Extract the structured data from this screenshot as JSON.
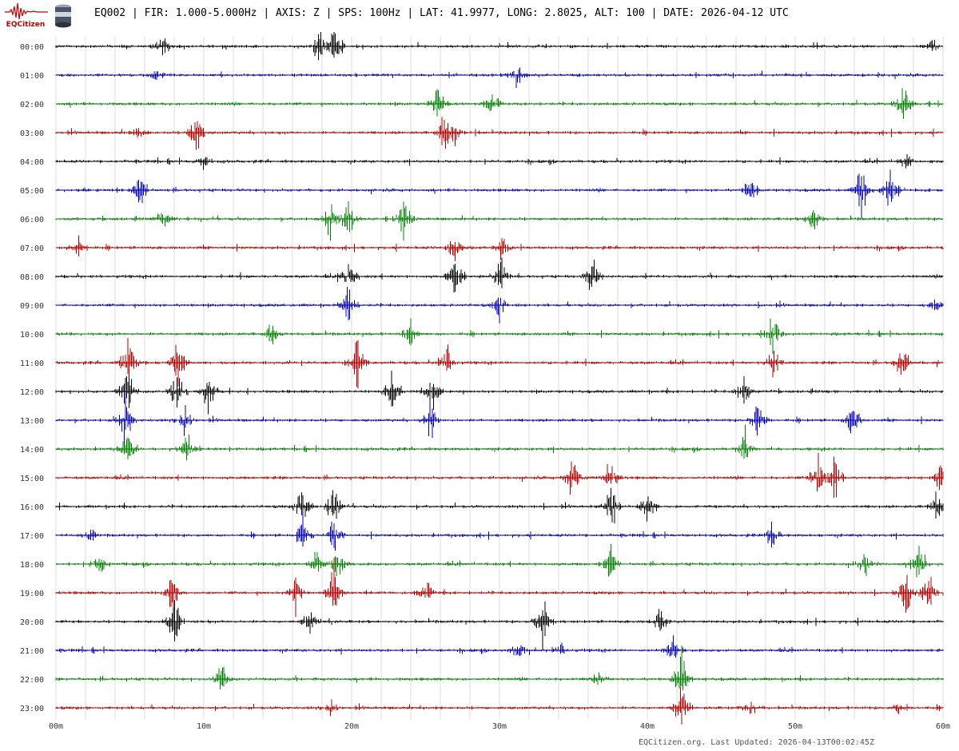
{
  "header": {
    "logo_text": "EQCitizen",
    "logo_icon": "seismogram-logo-icon",
    "sensor_icon": "sensor-can-icon",
    "title": "EQ002 | FIR: 1.000-5.000Hz | AXIS: Z | SPS: 100Hz | LAT: 41.9977, LONG: 2.8025, ALT: 100 | DATE: 2026-04-12 UTC"
  },
  "chart_data": {
    "type": "line",
    "title": "EQ002 | FIR: 1.000-5.000Hz | AXIS: Z | SPS: 100Hz | LAT: 41.9977, LONG: 2.8025, ALT: 100 | DATE: 2026-04-12 UTC",
    "xlabel": "",
    "ylabel": "",
    "x_ticks": [
      "00m",
      "10m",
      "20m",
      "30m",
      "40m",
      "50m",
      "60m"
    ],
    "x_range_minutes": [
      0,
      60
    ],
    "grid_minutes": 2,
    "grid": true,
    "color_cycle": [
      "#000000",
      "#0000b0",
      "#008000",
      "#b00000"
    ],
    "rows": [
      {
        "label": "00:00",
        "events": [
          [
            7.2,
            0.55
          ],
          [
            17.8,
            0.7
          ],
          [
            18.9,
            0.8
          ],
          [
            59.3,
            0.25
          ]
        ]
      },
      {
        "label": "01:00",
        "events": [
          [
            31.2,
            0.5
          ],
          [
            6.8,
            0.2
          ]
        ]
      },
      {
        "label": "02:00",
        "events": [
          [
            25.8,
            0.7
          ],
          [
            57.3,
            0.9
          ],
          [
            29.5,
            0.5
          ]
        ]
      },
      {
        "label": "03:00",
        "events": [
          [
            9.5,
            0.9
          ],
          [
            26.3,
            0.8
          ],
          [
            5.5,
            0.3
          ],
          [
            27,
            0.5
          ]
        ]
      },
      {
        "label": "04:00",
        "events": [
          [
            57.5,
            0.3
          ],
          [
            10,
            0.2
          ]
        ]
      },
      {
        "label": "05:00",
        "events": [
          [
            5.8,
            0.7
          ],
          [
            47,
            0.5
          ],
          [
            54.5,
            1.0
          ],
          [
            56.5,
            1.0
          ]
        ]
      },
      {
        "label": "06:00",
        "events": [
          [
            18.5,
            0.8
          ],
          [
            19.8,
            0.9
          ],
          [
            23.5,
            0.9
          ],
          [
            51.3,
            0.6
          ],
          [
            7.3,
            0.5
          ]
        ]
      },
      {
        "label": "07:00",
        "events": [
          [
            27,
            0.7
          ],
          [
            30.2,
            0.5
          ],
          [
            1.5,
            0.3
          ]
        ]
      },
      {
        "label": "08:00",
        "events": [
          [
            19.8,
            0.9
          ],
          [
            27,
            0.9
          ],
          [
            30,
            1.0
          ],
          [
            36.3,
            0.7
          ]
        ]
      },
      {
        "label": "09:00",
        "events": [
          [
            19.8,
            0.7
          ],
          [
            30,
            0.5
          ],
          [
            59.5,
            0.3
          ]
        ]
      },
      {
        "label": "10:00",
        "events": [
          [
            14.6,
            0.4
          ],
          [
            24,
            0.5
          ],
          [
            48.5,
            0.7
          ]
        ]
      },
      {
        "label": "11:00",
        "events": [
          [
            4.9,
            1.0
          ],
          [
            8.3,
            0.9
          ],
          [
            20.4,
            0.8
          ],
          [
            26.4,
            0.8
          ],
          [
            48.5,
            0.6
          ],
          [
            57.2,
            0.9
          ]
        ]
      },
      {
        "label": "12:00",
        "events": [
          [
            4.8,
            1.0
          ],
          [
            8.2,
            0.9
          ],
          [
            10.3,
            0.9
          ],
          [
            22.8,
            1.0
          ],
          [
            25.4,
            1.0
          ],
          [
            46.5,
            0.5
          ]
        ]
      },
      {
        "label": "13:00",
        "events": [
          [
            4.7,
            1.0
          ],
          [
            8.7,
            0.6
          ],
          [
            25.4,
            0.8
          ],
          [
            47.5,
            0.8
          ],
          [
            53.9,
            0.7
          ]
        ]
      },
      {
        "label": "14:00",
        "events": [
          [
            4.9,
            0.7
          ],
          [
            8.9,
            0.5
          ],
          [
            46.6,
            0.8
          ]
        ]
      },
      {
        "label": "15:00",
        "events": [
          [
            34.9,
            0.8
          ],
          [
            37.5,
            0.9
          ],
          [
            51.5,
            0.8
          ],
          [
            52.7,
            0.8
          ],
          [
            59.8,
            0.5
          ]
        ]
      },
      {
        "label": "16:00",
        "events": [
          [
            16.7,
            1.0
          ],
          [
            18.8,
            0.9
          ],
          [
            37.6,
            1.0
          ],
          [
            40.1,
            0.8
          ],
          [
            59.6,
            0.5
          ]
        ]
      },
      {
        "label": "17:00",
        "events": [
          [
            16.7,
            0.8
          ],
          [
            18.8,
            0.7
          ],
          [
            48.4,
            0.5
          ],
          [
            2.3,
            0.3
          ]
        ]
      },
      {
        "label": "18:00",
        "events": [
          [
            2.9,
            0.5
          ],
          [
            17.6,
            0.6
          ],
          [
            19.1,
            0.8
          ],
          [
            37.5,
            0.6
          ],
          [
            54.6,
            0.6
          ],
          [
            58.4,
            0.7
          ]
        ]
      },
      {
        "label": "19:00",
        "events": [
          [
            7.9,
            0.8
          ],
          [
            16.2,
            0.7
          ],
          [
            18.8,
            1.0
          ],
          [
            57.5,
            1.0
          ],
          [
            59,
            0.9
          ],
          [
            25,
            0.5
          ]
        ]
      },
      {
        "label": "20:00",
        "events": [
          [
            8,
            1.0
          ],
          [
            32.9,
            1.0
          ],
          [
            40.8,
            0.5
          ],
          [
            17.2,
            0.5
          ]
        ]
      },
      {
        "label": "21:00",
        "events": [
          [
            31.3,
            0.4
          ],
          [
            34.1,
            0.3
          ],
          [
            41.7,
            0.8
          ]
        ]
      },
      {
        "label": "22:00",
        "events": [
          [
            11.2,
            0.6
          ],
          [
            42.3,
            1.0
          ],
          [
            36.7,
            0.3
          ]
        ]
      },
      {
        "label": "23:00",
        "events": [
          [
            18.6,
            0.3
          ],
          [
            42.3,
            1.0
          ],
          [
            47,
            0.3
          ],
          [
            57,
            0.2
          ]
        ]
      }
    ]
  },
  "footer": {
    "text": "EQCitizen.org. Last Updated: 2026-04-13T00:02:45Z"
  }
}
